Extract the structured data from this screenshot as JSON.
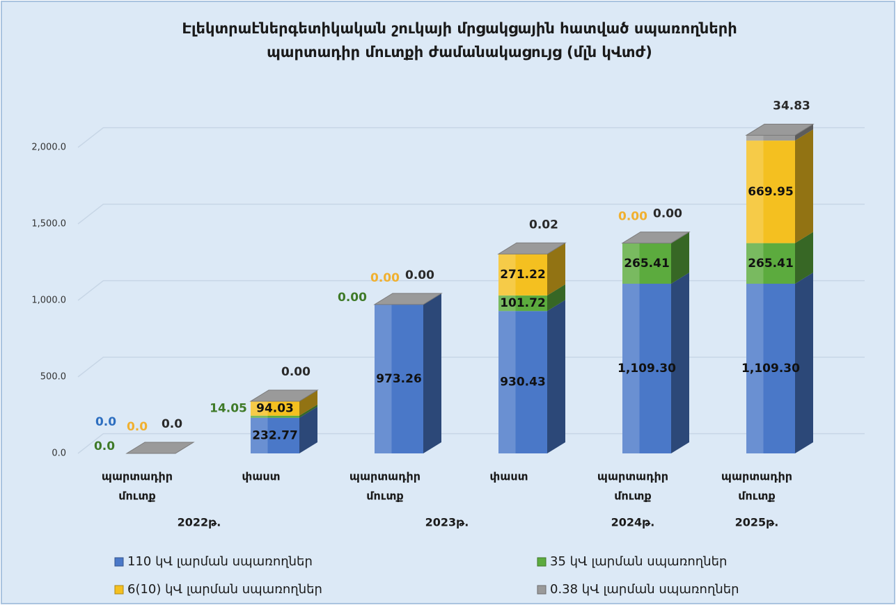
{
  "chart_data": {
    "type": "bar3d-stacked",
    "title": [
      "Էլեկտրաէներգետիկական շուկայի մրցակցային հատված սպառողների",
      "պարտադիր մուտքի ժամանակացույց (մլն կՎտժ)"
    ],
    "categories": [
      [
        "պարտադիր",
        "մուտք"
      ],
      [
        "փաստ"
      ],
      [
        "պարտադիր",
        "մուտք"
      ],
      [
        "փաստ"
      ],
      [
        "պարտադիր",
        "մուտք"
      ],
      [
        "պարտադիր",
        "մուտք"
      ]
    ],
    "groups": [
      "2022թ.",
      "2023թ.",
      "2024թ.",
      "2025թ."
    ],
    "group_sizes": [
      2,
      2,
      1,
      1
    ],
    "series": [
      {
        "name": "110 կՎ լարման սպառողներ",
        "color": "#4a78c8",
        "label_color": "#2e6fc0",
        "values": [
          0,
          232.77,
          973.26,
          930.43,
          1109.3,
          1109.3
        ],
        "value_labels": [
          "0.0",
          "232.77",
          "973.26",
          "930.43",
          "1,109.30",
          "1,109.30"
        ]
      },
      {
        "name": "35 կՎ լարման սպառողներ",
        "color": "#5cab3e",
        "label_color": "#3f7a28",
        "values": [
          0,
          14.05,
          0,
          101.72,
          265.41,
          265.41
        ],
        "value_labels": [
          "0.0",
          "14.05",
          "0.00",
          "101.72",
          "265.41",
          "265.41"
        ]
      },
      {
        "name": "6(10) կՎ լարման սպառողներ",
        "color": "#f4c020",
        "label_color": "#f0b030",
        "values": [
          0,
          94.03,
          0,
          271.22,
          0,
          669.95
        ],
        "value_labels": [
          "0.0",
          "94.03",
          "0.00",
          "271.22",
          "0.00",
          "669.95"
        ]
      },
      {
        "name": "0.38 կՎ լարման սպառողներ",
        "color": "#9a9a9a",
        "label_color": "#2a2a2a",
        "values": [
          0,
          0,
          0,
          0.02,
          0,
          34.83
        ],
        "value_labels": [
          "0.0",
          "0.00",
          "0.00",
          "0.02",
          "0.00",
          "34.83"
        ]
      }
    ],
    "ylim": [
      0,
      2200
    ],
    "yticks": [
      {
        "value": 0,
        "label": "0.0"
      },
      {
        "value": 500,
        "label": "500.0"
      },
      {
        "value": 1000,
        "label": "1,000.0"
      },
      {
        "value": 1500,
        "label": "1,500.0"
      },
      {
        "value": 2000,
        "label": "2,000.0"
      }
    ],
    "grid": true,
    "legend": "bottom"
  }
}
